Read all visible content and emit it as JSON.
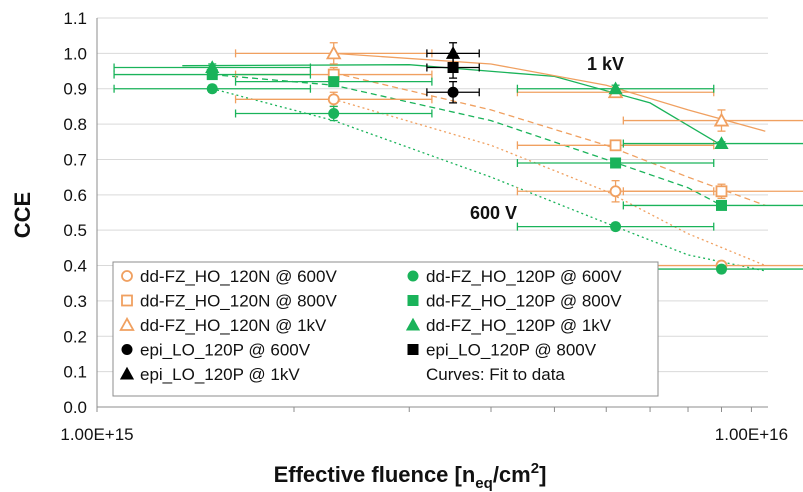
{
  "chart_data": {
    "type": "scatter",
    "title": "",
    "xlabel": {
      "main": "Effective fluence [n",
      "sub": "eq",
      "mid": "/cm",
      "sup": "2",
      "end": "]"
    },
    "ylabel": "CCE",
    "xscale": "log",
    "xlim": [
      1000000000000000.0,
      1.06e+16
    ],
    "ylim": [
      0.0,
      1.1
    ],
    "x_ticks": [
      {
        "value": 1000000000000000.0,
        "label": "1.00E+15"
      },
      {
        "value": 1e+16,
        "label": "1.00E+16"
      }
    ],
    "y_ticks": [
      {
        "value": 0.0,
        "label": "0.0"
      },
      {
        "value": 0.1,
        "label": "0.1"
      },
      {
        "value": 0.2,
        "label": "0.2"
      },
      {
        "value": 0.3,
        "label": "0.3"
      },
      {
        "value": 0.4,
        "label": "0.4"
      },
      {
        "value": 0.5,
        "label": "0.5"
      },
      {
        "value": 0.6,
        "label": "0.6"
      },
      {
        "value": 0.7,
        "label": "0.7"
      },
      {
        "value": 0.8,
        "label": "0.8"
      },
      {
        "value": 0.9,
        "label": "0.9"
      },
      {
        "value": 1.0,
        "label": "1.0"
      },
      {
        "value": 1.1,
        "label": "1.1"
      }
    ],
    "grid": "horizontal",
    "legend_position": "bottom-left",
    "colors": {
      "orange": "#f0a060",
      "green": "#1ab35a",
      "black": "#000000"
    },
    "annotations": [
      "1 kV",
      "600 V"
    ],
    "legend_note": "Curves: Fit to data",
    "series": [
      {
        "name": "dd-FZ_HO_120N @ 600V",
        "marker": "circle",
        "fill": "open",
        "color": "orange",
        "points": [
          {
            "x": 2300000000000000.0,
            "y": 0.87,
            "xerr": 0.15,
            "yerr": 0.02
          },
          {
            "x": 6200000000000000.0,
            "y": 0.61,
            "xerr": 0.15,
            "yerr": 0.03
          },
          {
            "x": 9000000000000000.0,
            "y": 0.4,
            "xerr": 0.15,
            "yerr": 0.01
          }
        ]
      },
      {
        "name": "dd-FZ_HO_120P @ 600V",
        "marker": "circle",
        "fill": "solid",
        "color": "green",
        "points": [
          {
            "x": 1500000000000000.0,
            "y": 0.9,
            "xerr": 0.15,
            "yerr": 0.01
          },
          {
            "x": 2300000000000000.0,
            "y": 0.83,
            "xerr": 0.15,
            "yerr": 0.02
          },
          {
            "x": 6200000000000000.0,
            "y": 0.51,
            "xerr": 0.15,
            "yerr": 0.01
          },
          {
            "x": 9000000000000000.0,
            "y": 0.39,
            "xerr": 0.15,
            "yerr": 0.01
          }
        ]
      },
      {
        "name": "dd-FZ_HO_120N @ 800V",
        "marker": "square",
        "fill": "open",
        "color": "orange",
        "points": [
          {
            "x": 2300000000000000.0,
            "y": 0.94,
            "xerr": 0.15,
            "yerr": 0.02
          },
          {
            "x": 6200000000000000.0,
            "y": 0.74,
            "xerr": 0.15,
            "yerr": 0.01
          },
          {
            "x": 9000000000000000.0,
            "y": 0.61,
            "xerr": 0.15,
            "yerr": 0.02
          }
        ]
      },
      {
        "name": "dd-FZ_HO_120P @ 800V",
        "marker": "square",
        "fill": "solid",
        "color": "green",
        "points": [
          {
            "x": 1500000000000000.0,
            "y": 0.94,
            "xerr": 0.15,
            "yerr": 0.01
          },
          {
            "x": 2300000000000000.0,
            "y": 0.92,
            "xerr": 0.15,
            "yerr": 0.01
          },
          {
            "x": 6200000000000000.0,
            "y": 0.69,
            "xerr": 0.15,
            "yerr": 0.01
          },
          {
            "x": 9000000000000000.0,
            "y": 0.57,
            "xerr": 0.15,
            "yerr": 0.01
          }
        ]
      },
      {
        "name": "dd-FZ_HO_120N @ 1kV",
        "marker": "triangle",
        "fill": "open",
        "color": "orange",
        "points": [
          {
            "x": 2300000000000000.0,
            "y": 1.0,
            "xerr": 0.15,
            "yerr": 0.03
          },
          {
            "x": 6200000000000000.0,
            "y": 0.89,
            "xerr": 0.15,
            "yerr": 0.01
          },
          {
            "x": 9000000000000000.0,
            "y": 0.81,
            "xerr": 0.15,
            "yerr": 0.03
          }
        ]
      },
      {
        "name": "dd-FZ_HO_120P @ 1kV",
        "marker": "triangle",
        "fill": "solid",
        "color": "green",
        "points": [
          {
            "x": 1500000000000000.0,
            "y": 0.96,
            "xerr": 0.15,
            "yerr": 0.01
          },
          {
            "x": 6200000000000000.0,
            "y": 0.9,
            "xerr": 0.15,
            "yerr": 0.01
          },
          {
            "x": 9000000000000000.0,
            "y": 0.745,
            "xerr": 0.15,
            "yerr": 0.005
          }
        ]
      },
      {
        "name": "epi_LO_120P @ 600V",
        "marker": "circle",
        "fill": "solid",
        "color": "black",
        "points": [
          {
            "x": 3500000000000000.0,
            "y": 0.89,
            "xerr": 0.04,
            "yerr": 0.03
          }
        ]
      },
      {
        "name": "epi_LO_120P @ 800V",
        "marker": "square",
        "fill": "solid",
        "color": "black",
        "points": [
          {
            "x": 3500000000000000.0,
            "y": 0.96,
            "xerr": 0.04,
            "yerr": 0.03
          }
        ]
      },
      {
        "name": "epi_LO_120P @ 1kV",
        "marker": "triangle",
        "fill": "solid",
        "color": "black",
        "points": [
          {
            "x": 3500000000000000.0,
            "y": 1.0,
            "xerr": 0.04,
            "yerr": 0.03
          }
        ]
      }
    ],
    "fit_curves": [
      {
        "color": "green",
        "style": "solid",
        "points": [
          [
            1350000000000000.0,
            0.965
          ],
          [
            3000000000000000.0,
            0.968
          ],
          [
            5000000000000000.0,
            0.935
          ],
          [
            7000000000000000.0,
            0.86
          ],
          [
            9000000000000000.0,
            0.74
          ]
        ]
      },
      {
        "color": "orange",
        "style": "solid",
        "points": [
          [
            2300000000000000.0,
            1.0
          ],
          [
            4000000000000000.0,
            0.97
          ],
          [
            6000000000000000.0,
            0.91
          ],
          [
            8000000000000000.0,
            0.84
          ],
          [
            1.05e+16,
            0.78
          ]
        ]
      },
      {
        "color": "orange",
        "style": "dashed",
        "points": [
          [
            2300000000000000.0,
            0.945
          ],
          [
            4000000000000000.0,
            0.84
          ],
          [
            6000000000000000.0,
            0.74
          ],
          [
            8000000000000000.0,
            0.65
          ],
          [
            1.05e+16,
            0.57
          ]
        ]
      },
      {
        "color": "green",
        "style": "dashed",
        "points": [
          [
            1500000000000000.0,
            0.94
          ],
          [
            2300000000000000.0,
            0.91
          ],
          [
            4000000000000000.0,
            0.81
          ],
          [
            6000000000000000.0,
            0.7
          ],
          [
            8000000000000000.0,
            0.62
          ],
          [
            9000000000000000.0,
            0.57
          ]
        ]
      },
      {
        "color": "orange",
        "style": "dotted",
        "points": [
          [
            2300000000000000.0,
            0.87
          ],
          [
            4000000000000000.0,
            0.74
          ],
          [
            6000000000000000.0,
            0.61
          ],
          [
            8000000000000000.0,
            0.49
          ],
          [
            1.05e+16,
            0.4
          ]
        ]
      },
      {
        "color": "green",
        "style": "dotted",
        "points": [
          [
            1500000000000000.0,
            0.9
          ],
          [
            2300000000000000.0,
            0.81
          ],
          [
            4000000000000000.0,
            0.65
          ],
          [
            6000000000000000.0,
            0.52
          ],
          [
            8000000000000000.0,
            0.43
          ],
          [
            1.05e+16,
            0.385
          ]
        ]
      }
    ]
  }
}
